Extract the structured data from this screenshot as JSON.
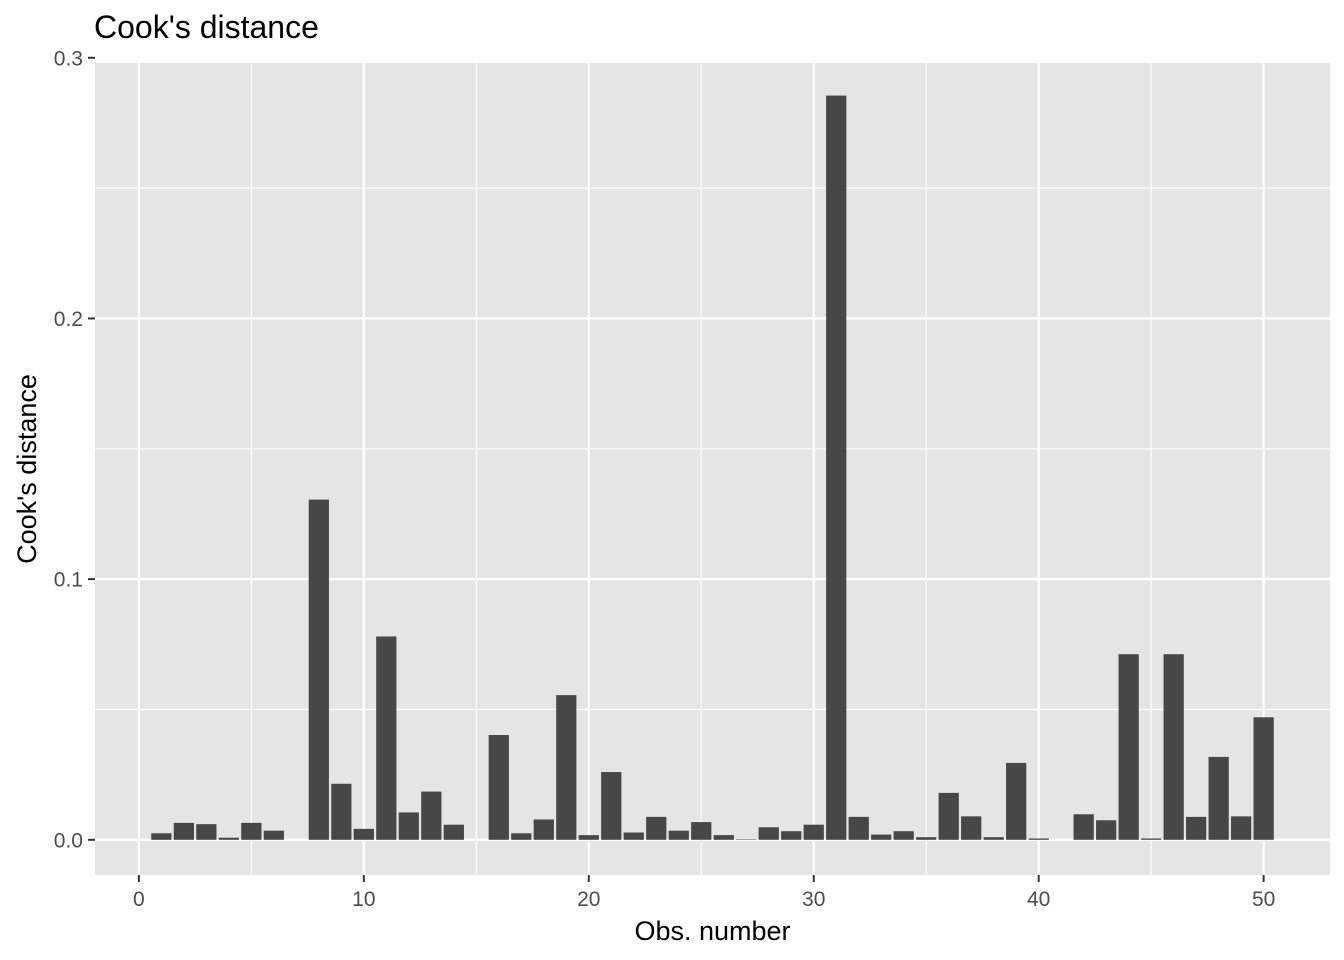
{
  "chart_data": {
    "type": "bar",
    "title": "Cook's distance",
    "xlabel": "Obs. number",
    "ylabel": "Cook's distance",
    "xlim": [
      -1.95,
      52.95
    ],
    "ylim": [
      -0.0135,
      0.298
    ],
    "x_ticks": [
      0,
      10,
      20,
      30,
      40,
      50
    ],
    "x_tick_labels": [
      "0",
      "10",
      "20",
      "30",
      "40",
      "50"
    ],
    "y_ticks": [
      0.0,
      0.1,
      0.2,
      0.3
    ],
    "y_tick_labels": [
      "0.0",
      "0.1",
      "0.2",
      "0.3"
    ],
    "x": [
      1,
      2,
      3,
      4,
      5,
      6,
      7,
      8,
      9,
      10,
      11,
      12,
      13,
      14,
      15,
      16,
      17,
      18,
      19,
      20,
      21,
      22,
      23,
      24,
      25,
      26,
      27,
      28,
      29,
      30,
      31,
      32,
      33,
      34,
      35,
      36,
      37,
      38,
      39,
      40,
      41,
      42,
      43,
      44,
      45,
      46,
      47,
      48,
      49,
      50
    ],
    "values": [
      0.0025,
      0.0065,
      0.006,
      0.0008,
      0.0065,
      0.0035,
      0.0,
      0.1305,
      0.0215,
      0.0042,
      0.078,
      0.0105,
      0.0185,
      0.0058,
      0.0,
      0.0402,
      0.0025,
      0.0078,
      0.0555,
      0.0018,
      0.026,
      0.0028,
      0.0088,
      0.0035,
      0.0068,
      0.0018,
      0.0002,
      0.0048,
      0.0033,
      0.0058,
      0.2855,
      0.0088,
      0.002,
      0.0033,
      0.001,
      0.018,
      0.009,
      0.001,
      0.0295,
      0.0005,
      0.0,
      0.0098,
      0.0075,
      0.0712,
      0.0005,
      0.0712,
      0.0088,
      0.0318,
      0.009,
      0.047
    ],
    "grid": true,
    "panel_background": "#e5e5e5",
    "bar_color": "#474747",
    "legend": "none"
  }
}
